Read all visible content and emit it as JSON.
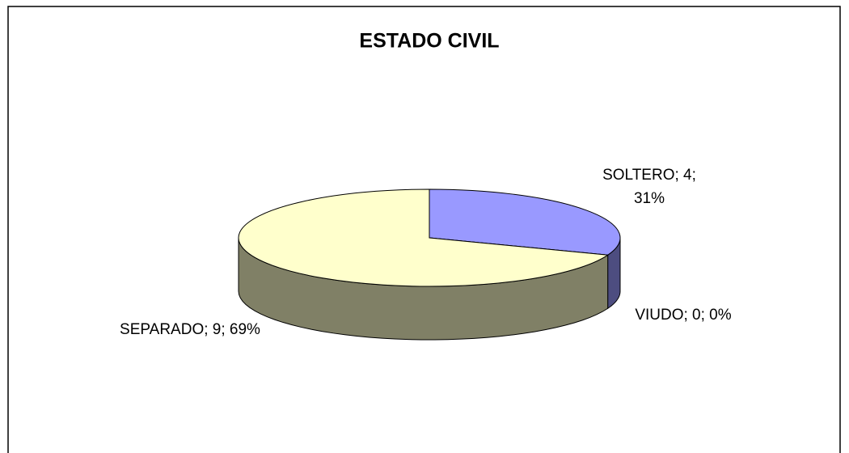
{
  "chart_data": {
    "type": "pie3d",
    "title": "ESTADO CIVIL",
    "categories": [
      "SOLTERO",
      "VIUDO",
      "SEPARADO"
    ],
    "values": [
      4,
      0,
      9
    ],
    "value_labels": [
      "SOLTERO; 4; 31%",
      "VIUDO; 0; 0%",
      "SEPARADO; 9; 69%"
    ],
    "colors": [
      "#9999ff",
      "#993366",
      "#ffffcc"
    ]
  }
}
